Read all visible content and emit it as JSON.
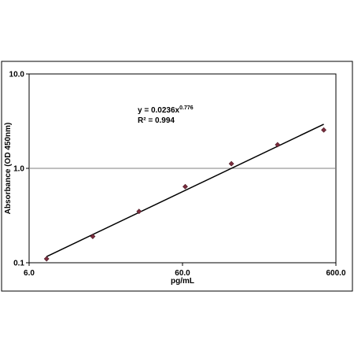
{
  "chart_data": {
    "type": "scatter",
    "xlabel": "pg/mL",
    "ylabel": "Absorbance (OD 450nm)",
    "x_scale": "log",
    "y_scale": "log",
    "xlim": [
      6.0,
      600.0
    ],
    "ylim": [
      0.1,
      10.0
    ],
    "x_ticks": [
      6.0,
      60.0,
      600.0
    ],
    "x_tick_labels": [
      "6.0",
      "60.0",
      "600.0"
    ],
    "y_ticks": [
      0.1,
      1.0,
      10.0
    ],
    "y_tick_labels": [
      "0.1",
      "1.0",
      "10.0"
    ],
    "gridlines": {
      "horizontal": true,
      "vertical": false
    },
    "points": [
      {
        "x": 7.8,
        "y": 0.11
      },
      {
        "x": 15.6,
        "y": 0.19
      },
      {
        "x": 31.25,
        "y": 0.35
      },
      {
        "x": 62.5,
        "y": 0.64
      },
      {
        "x": 125,
        "y": 1.12
      },
      {
        "x": 250,
        "y": 1.78
      },
      {
        "x": 500,
        "y": 2.55
      }
    ],
    "trendline": {
      "type": "power",
      "coefficient": 0.0236,
      "exponent": 0.776,
      "x_range": [
        7.8,
        500
      ],
      "equation_prefix": "y = 0.0236x",
      "equation_exponent": "0.776",
      "r_squared_label": "R² = 0.994"
    },
    "colors": {
      "marker": "#7b2d3e",
      "marker_edge": "#4a1a24",
      "line": "#000000",
      "grid": "#7f7f7f",
      "axis": "#000000"
    }
  }
}
